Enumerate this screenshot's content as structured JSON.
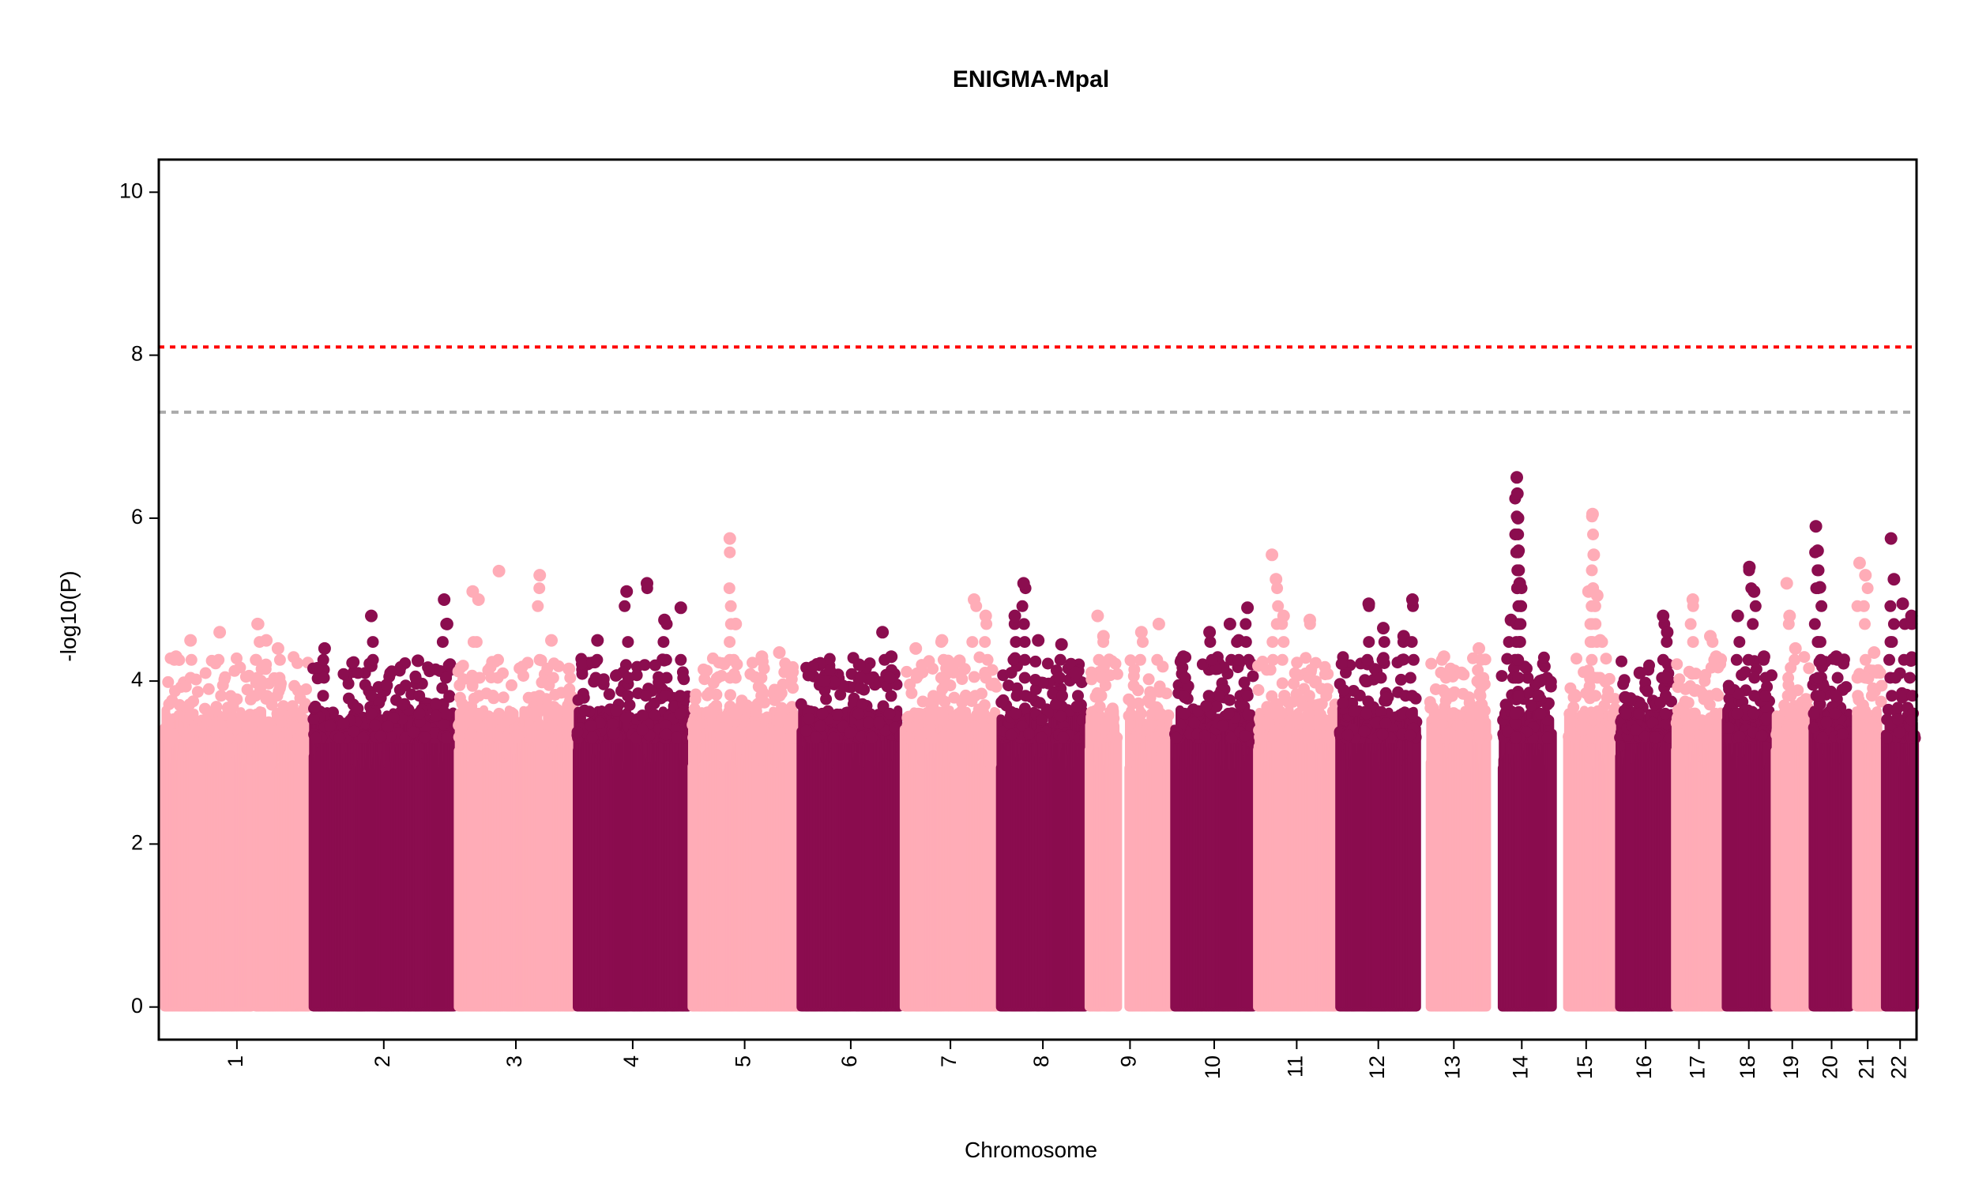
{
  "chart_data": {
    "type": "scatter",
    "title": "ENIGMA-Mpal",
    "xlabel": "Chromosome",
    "ylabel": "-log10(P)",
    "ylim": [
      -0.4,
      10.4
    ],
    "yticks": [
      0,
      2,
      4,
      6,
      8,
      10
    ],
    "colors": {
      "odd": "#FFACB7",
      "even": "#8B0D4F"
    },
    "reference_lines": [
      {
        "y": 8.1,
        "color": "#FF0000",
        "style": "dotted"
      },
      {
        "y": 7.3,
        "color": "#AAAAAA",
        "style": "dashed"
      }
    ],
    "chromosomes": [
      {
        "label": "1",
        "start": 0,
        "end": 249,
        "gaps": [
          [
            150,
            156
          ]
        ],
        "max": 4.7,
        "top": [
          [
            20,
            4.3
          ],
          [
            45,
            4.5
          ],
          [
            95,
            4.6
          ],
          [
            160,
            4.7
          ],
          [
            175,
            4.5
          ],
          [
            195,
            4.4
          ]
        ]
      },
      {
        "label": "2",
        "start": 255,
        "end": 498,
        "gaps": [],
        "max": 5.0,
        "top": [
          [
            20,
            4.4
          ],
          [
            100,
            4.8
          ],
          [
            180,
            4.25
          ],
          [
            225,
            5.0
          ],
          [
            230,
            4.7
          ],
          [
            240,
            4.15
          ]
        ]
      },
      {
        "label": "3",
        "start": 504,
        "end": 702,
        "gaps": [],
        "max": 5.35,
        "top": [
          [
            25,
            5.1
          ],
          [
            35,
            5.0
          ],
          [
            70,
            5.35
          ],
          [
            140,
            5.3
          ],
          [
            160,
            4.5
          ],
          [
            190,
            4.15
          ]
        ]
      },
      {
        "label": "4",
        "start": 708,
        "end": 899,
        "gaps": [],
        "max": 5.2,
        "top": [
          [
            35,
            4.5
          ],
          [
            85,
            5.1
          ],
          [
            120,
            5.2
          ],
          [
            150,
            4.75
          ],
          [
            178,
            4.9
          ]
        ]
      },
      {
        "label": "5",
        "start": 905,
        "end": 1086,
        "gaps": [],
        "max": 5.75,
        "top": [
          [
            65,
            5.75
          ],
          [
            75,
            4.7
          ],
          [
            120,
            4.3
          ],
          [
            150,
            4.35
          ]
        ]
      },
      {
        "label": "6",
        "start": 1092,
        "end": 1263,
        "gaps": [],
        "max": 4.6,
        "top": [
          [
            40,
            4.0
          ],
          [
            100,
            4.2
          ],
          [
            140,
            4.6
          ],
          [
            155,
            4.3
          ]
        ]
      },
      {
        "label": "7",
        "start": 1269,
        "end": 1428,
        "gaps": [],
        "max": 5.0,
        "top": [
          [
            20,
            4.4
          ],
          [
            65,
            4.5
          ],
          [
            95,
            4.25
          ],
          [
            120,
            5.0
          ],
          [
            140,
            4.8
          ]
        ]
      },
      {
        "label": "8",
        "start": 1434,
        "end": 1580,
        "gaps": [],
        "max": 5.2,
        "top": [
          [
            25,
            4.8
          ],
          [
            40,
            5.2
          ],
          [
            65,
            4.5
          ],
          [
            105,
            4.45
          ],
          [
            130,
            4.1
          ]
        ]
      },
      {
        "label": "9",
        "start": 1586,
        "end": 1727,
        "gaps": [
          [
            50,
            68
          ]
        ],
        "max": 4.8,
        "top": [
          [
            15,
            4.8
          ],
          [
            25,
            4.55
          ],
          [
            90,
            4.6
          ],
          [
            120,
            4.7
          ]
        ]
      },
      {
        "label": "10",
        "start": 1733,
        "end": 1869,
        "gaps": [],
        "max": 4.9,
        "top": [
          [
            15,
            4.3
          ],
          [
            60,
            4.6
          ],
          [
            95,
            4.7
          ],
          [
            110,
            4.5
          ],
          [
            125,
            4.9
          ]
        ]
      },
      {
        "label": "11",
        "start": 1875,
        "end": 2010,
        "gaps": [],
        "max": 5.55,
        "top": [
          [
            25,
            5.55
          ],
          [
            32,
            5.25
          ],
          [
            45,
            4.8
          ],
          [
            90,
            4.75
          ],
          [
            120,
            3.9
          ]
        ]
      },
      {
        "label": "12",
        "start": 2016,
        "end": 2149,
        "gaps": [],
        "max": 5.0,
        "top": [
          [
            50,
            4.95
          ],
          [
            75,
            4.65
          ],
          [
            110,
            4.55
          ],
          [
            125,
            5.0
          ]
        ]
      },
      {
        "label": "13",
        "start": 2155,
        "end": 2269,
        "gaps": [
          [
            0,
            16
          ]
        ],
        "max": 4.4,
        "top": [
          [
            40,
            4.3
          ],
          [
            70,
            4.1
          ],
          [
            100,
            4.4
          ]
        ]
      },
      {
        "label": "14",
        "start": 2275,
        "end": 2382,
        "gaps": [
          [
            0,
            19
          ]
        ],
        "max": 6.5,
        "top": [
          [
            35,
            4.75
          ],
          [
            45,
            6.5
          ],
          [
            46,
            6.3
          ],
          [
            47,
            6.0
          ],
          [
            48,
            5.6
          ],
          [
            50,
            5.2
          ],
          [
            85,
            4.0
          ]
        ]
      },
      {
        "label": "15",
        "start": 2388,
        "end": 2490,
        "gaps": [
          [
            0,
            18
          ]
        ],
        "max": 6.05,
        "top": [
          [
            55,
            5.1
          ],
          [
            62,
            6.05
          ],
          [
            64,
            5.55
          ],
          [
            70,
            5.05
          ],
          [
            75,
            4.5
          ]
        ]
      },
      {
        "label": "16",
        "start": 2496,
        "end": 2586,
        "gaps": [],
        "max": 4.8,
        "top": [
          [
            10,
            3.8
          ],
          [
            35,
            4.1
          ],
          [
            75,
            4.8
          ],
          [
            82,
            4.6
          ]
        ]
      },
      {
        "label": "17",
        "start": 2592,
        "end": 2673,
        "gaps": [],
        "max": 5.0,
        "top": [
          [
            30,
            5.0
          ],
          [
            60,
            4.55
          ],
          [
            70,
            4.3
          ]
        ]
      },
      {
        "label": "18",
        "start": 2679,
        "end": 2757,
        "gaps": [],
        "max": 5.4,
        "top": [
          [
            20,
            4.8
          ],
          [
            40,
            5.4
          ],
          [
            48,
            5.1
          ],
          [
            65,
            4.3
          ]
        ]
      },
      {
        "label": "19",
        "start": 2763,
        "end": 2822,
        "gaps": [],
        "max": 5.2,
        "top": [
          [
            20,
            5.2
          ],
          [
            25,
            4.8
          ],
          [
            35,
            4.4
          ]
        ]
      },
      {
        "label": "20",
        "start": 2828,
        "end": 2892,
        "gaps": [],
        "max": 5.9,
        "top": [
          [
            5,
            5.9
          ],
          [
            8,
            5.6
          ],
          [
            12,
            5.15
          ],
          [
            40,
            4.3
          ]
        ]
      },
      {
        "label": "21",
        "start": 2898,
        "end": 2946,
        "gaps": [
          [
            0,
            4
          ]
        ],
        "max": 5.45,
        "top": [
          [
            10,
            5.45
          ],
          [
            20,
            5.3
          ],
          [
            35,
            4.35
          ]
        ]
      },
      {
        "label": "22",
        "start": 2952,
        "end": 3003,
        "gaps": [],
        "max": 5.75,
        "top": [
          [
            10,
            5.75
          ],
          [
            15,
            5.25
          ],
          [
            30,
            4.95
          ],
          [
            45,
            4.8
          ]
        ]
      }
    ]
  }
}
